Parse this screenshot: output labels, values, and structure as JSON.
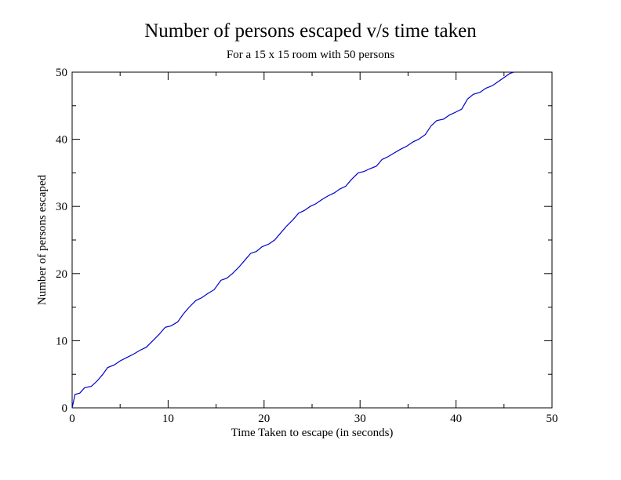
{
  "chart_data": {
    "type": "line",
    "title": "Number of persons escaped v/s time taken",
    "subtitle": "For a 15 x 15 room with 50 persons",
    "xlabel": "Time Taken to escape (in seconds)",
    "ylabel": "Number of persons escaped",
    "xlim": [
      0,
      50
    ],
    "ylim": [
      0,
      50
    ],
    "xticks": [
      0,
      10,
      20,
      30,
      40,
      50
    ],
    "yticks": [
      0,
      10,
      20,
      30,
      40,
      50
    ],
    "xtick_labels": [
      "0",
      "10",
      "20",
      "30",
      "40",
      "50"
    ],
    "ytick_labels": [
      "0",
      "10",
      "20",
      "30",
      "40",
      "50"
    ],
    "grid": false,
    "line_color": "#0000cc",
    "series": [
      {
        "x": [
          0,
          0.3,
          0.8,
          1.3,
          2.0,
          2.6,
          3.2,
          3.7,
          4.4,
          5.0,
          5.7,
          6.4,
          7.1,
          7.7,
          8.4,
          9.1,
          9.7,
          10.3,
          11.0,
          11.6,
          12.2,
          12.9,
          13.5,
          14.1,
          14.8,
          15.5,
          16.1,
          16.7,
          17.4,
          18.0,
          18.6,
          19.2,
          19.8,
          20.5,
          21.1,
          21.7,
          22.3,
          23.0,
          23.6,
          24.2,
          24.8,
          25.4,
          26.0,
          26.7,
          27.3,
          27.9,
          28.5,
          29.1,
          29.8,
          30.4,
          31.0,
          31.7,
          32.3,
          32.9,
          33.6,
          34.2,
          34.9,
          35.5,
          36.1,
          36.8,
          37.4,
          38.0,
          38.7,
          39.3,
          39.9,
          40.6,
          41.2,
          41.8,
          42.5,
          43.1,
          43.8,
          44.4,
          45.0,
          45.6,
          46.0
        ],
        "y": [
          0,
          2,
          2.2,
          3,
          3.2,
          4,
          5,
          6,
          6.4,
          7,
          7.5,
          8,
          8.6,
          9,
          10,
          11,
          12,
          12.2,
          12.8,
          14,
          15,
          16,
          16.4,
          17,
          17.6,
          19,
          19.3,
          20,
          21,
          22,
          23,
          23.3,
          24,
          24.4,
          25,
          26,
          27,
          28,
          29,
          29.4,
          30,
          30.4,
          31,
          31.6,
          32,
          32.6,
          33,
          34,
          35,
          35.2,
          35.6,
          36,
          37,
          37.4,
          38,
          38.5,
          39,
          39.6,
          40,
          40.7,
          42,
          42.8,
          43,
          43.6,
          44,
          44.5,
          46,
          46.7,
          47,
          47.6,
          48,
          48.6,
          49.2,
          49.8,
          50
        ]
      }
    ]
  }
}
